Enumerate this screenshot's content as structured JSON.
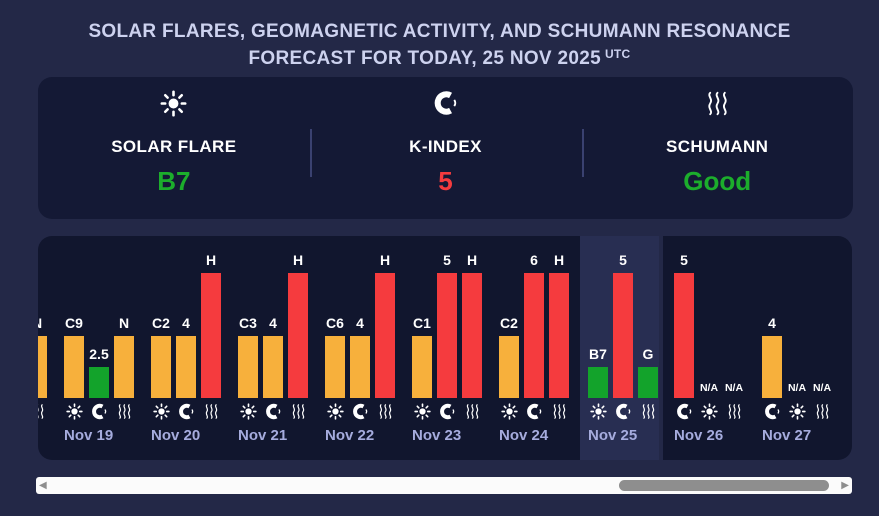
{
  "title": {
    "line1": "SOLAR FLARES, GEOMAGNETIC ACTIVITY, AND SCHUMANN RESONANCE",
    "line2": "FORECAST FOR TODAY, 25 NOV 2025",
    "timezone": "UTC"
  },
  "colors": {
    "orange": "#F7B03C",
    "red": "#F53B3E",
    "green": "#13A32B",
    "value_green": "#1CAD2C",
    "value_red": "#F53B3E",
    "page_bg": "#232847",
    "panel_bg": "#11162E",
    "today_panel_bg": "#282E52",
    "card_bg": "#141935",
    "title_text": "#CDD2EF",
    "date_text": "#A6ACDE"
  },
  "summary": {
    "items": [
      {
        "icon": "sun-icon",
        "label": "SOLAR FLARE",
        "value": "B7",
        "value_color": "#1CAD2C"
      },
      {
        "icon": "magnet-icon",
        "label": "K-INDEX",
        "value": "5",
        "value_color": "#F53B3E"
      },
      {
        "icon": "waves-icon",
        "label": "SCHUMANN",
        "value": "Good",
        "value_color": "#1CAD2C"
      }
    ]
  },
  "chart_data": {
    "type": "bar",
    "title": "Solar flare, K-index and Schumann resonance daily forecast",
    "categories": [
      "Nov 19",
      "Nov 20",
      "Nov 21",
      "Nov 22",
      "Nov 23",
      "Nov 24",
      "Nov 25",
      "Nov 26",
      "Nov 27"
    ],
    "series": [
      {
        "name": "Solar Flare",
        "values": [
          "C9",
          "C2",
          "C3",
          "C6",
          "C1",
          "C2",
          "B7",
          "N/A",
          "N/A"
        ]
      },
      {
        "name": "K-Index",
        "values": [
          2.5,
          4,
          4,
          4,
          5,
          6,
          5,
          5,
          4
        ]
      },
      {
        "name": "Schumann",
        "values": [
          "N",
          "H",
          "H",
          "H",
          "H",
          "H",
          "G",
          "N/A",
          "N/A"
        ]
      }
    ],
    "severity_color_map": {
      "low": "green",
      "moderate": "orange",
      "high": "red"
    },
    "today": "Nov 25",
    "legend_position": "none",
    "grid": false
  },
  "chart": {
    "days": [
      {
        "id": "nov-18-partial",
        "date": "",
        "panel": "past",
        "partial": true,
        "cols": [
          {
            "label": "N",
            "bar": "orange",
            "h": 62,
            "icon": "waves-icon"
          }
        ]
      },
      {
        "id": "nov-19",
        "date": "Nov 19",
        "panel": "past",
        "cols": [
          {
            "label": "C9",
            "bar": "orange",
            "h": 62,
            "icon": "sun-icon"
          },
          {
            "label": "2.5",
            "bar": "green",
            "h": 31,
            "icon": "magnet-icon"
          },
          {
            "label": "N",
            "bar": "orange",
            "h": 62,
            "icon": "waves-icon"
          }
        ]
      },
      {
        "id": "nov-20",
        "date": "Nov 20",
        "panel": "past",
        "cols": [
          {
            "label": "C2",
            "bar": "orange",
            "h": 62,
            "icon": "sun-icon"
          },
          {
            "label": "4",
            "bar": "orange",
            "h": 62,
            "icon": "magnet-icon"
          },
          {
            "label": "H",
            "bar": "red",
            "h": 125,
            "icon": "waves-icon"
          }
        ]
      },
      {
        "id": "nov-21",
        "date": "Nov 21",
        "panel": "past",
        "cols": [
          {
            "label": "C3",
            "bar": "orange",
            "h": 62,
            "icon": "sun-icon"
          },
          {
            "label": "4",
            "bar": "orange",
            "h": 62,
            "icon": "magnet-icon"
          },
          {
            "label": "H",
            "bar": "red",
            "h": 125,
            "icon": "waves-icon"
          }
        ]
      },
      {
        "id": "nov-22",
        "date": "Nov 22",
        "panel": "past",
        "cols": [
          {
            "label": "C6",
            "bar": "orange",
            "h": 62,
            "icon": "sun-icon"
          },
          {
            "label": "4",
            "bar": "orange",
            "h": 62,
            "icon": "magnet-icon"
          },
          {
            "label": "H",
            "bar": "red",
            "h": 125,
            "icon": "waves-icon"
          }
        ]
      },
      {
        "id": "nov-23",
        "date": "Nov 23",
        "panel": "past",
        "cols": [
          {
            "label": "C1",
            "bar": "orange",
            "h": 62,
            "icon": "sun-icon"
          },
          {
            "label": "5",
            "bar": "red",
            "h": 125,
            "icon": "magnet-icon"
          },
          {
            "label": "H",
            "bar": "red",
            "h": 125,
            "icon": "waves-icon"
          }
        ]
      },
      {
        "id": "nov-24",
        "date": "Nov 24",
        "panel": "past",
        "cols": [
          {
            "label": "C2",
            "bar": "orange",
            "h": 62,
            "icon": "sun-icon"
          },
          {
            "label": "6",
            "bar": "red",
            "h": 125,
            "icon": "magnet-icon"
          },
          {
            "label": "H",
            "bar": "red",
            "h": 125,
            "icon": "waves-icon"
          }
        ]
      },
      {
        "id": "nov-25",
        "date": "Nov 25",
        "panel": "today",
        "cols": [
          {
            "label": "B7",
            "bar": "green",
            "h": 31,
            "icon": "sun-icon"
          },
          {
            "label": "5",
            "bar": "red",
            "h": 125,
            "icon": "magnet-icon"
          },
          {
            "label": "G",
            "bar": "green",
            "h": 31,
            "icon": "waves-icon"
          }
        ]
      },
      {
        "id": "nov-26",
        "date": "Nov 26",
        "panel": "future",
        "cols": [
          {
            "label": "5",
            "bar": "red",
            "h": 125,
            "icon": "magnet-icon"
          },
          {
            "label": "N/A",
            "bar": null,
            "h": 0,
            "icon": "sun-icon"
          },
          {
            "label": "N/A",
            "bar": null,
            "h": 0,
            "icon": "waves-icon"
          }
        ]
      },
      {
        "id": "nov-27",
        "date": "Nov 27",
        "panel": "future",
        "cols": [
          {
            "label": "4",
            "bar": "orange",
            "h": 62,
            "icon": "magnet-icon"
          },
          {
            "label": "N/A",
            "bar": null,
            "h": 0,
            "icon": "sun-icon"
          },
          {
            "label": "N/A",
            "bar": null,
            "h": 0,
            "icon": "waves-icon"
          }
        ]
      }
    ]
  },
  "scrollbar": {
    "left_arrow": "◀",
    "right_arrow": "▶"
  }
}
